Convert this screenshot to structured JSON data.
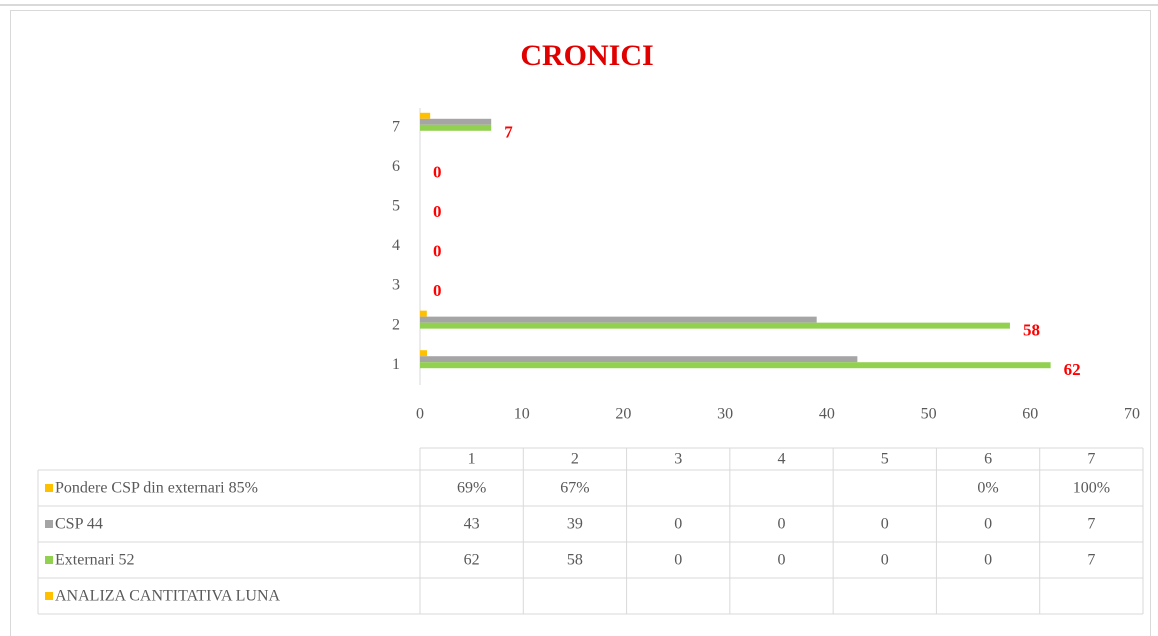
{
  "chart_data": {
    "type": "bar",
    "orientation": "horizontal",
    "title": "CRONICI",
    "categories": [
      "1",
      "2",
      "3",
      "4",
      "5",
      "6",
      "7"
    ],
    "series": [
      {
        "name": "Pondere CSP din externari 85%",
        "color": "#ffc000",
        "values": [
          0.69,
          0.67,
          null,
          null,
          null,
          0,
          1
        ],
        "value_labels": [
          "69%",
          "67%",
          null,
          null,
          null,
          "0%",
          "100%"
        ]
      },
      {
        "name": "CSP 44",
        "color": "#a5a5a5",
        "values": [
          43,
          39,
          0,
          0,
          0,
          0,
          7
        ]
      },
      {
        "name": "Externari 52",
        "color": "#92d050",
        "values": [
          62,
          58,
          0,
          0,
          0,
          0,
          7
        ],
        "data_labels": true,
        "label_color": "#ff0000"
      },
      {
        "name": "ANALIZA CANTITATIVA LUNA",
        "color": "#ffc000",
        "values": [
          null,
          null,
          null,
          null,
          null,
          null,
          null
        ]
      }
    ],
    "xlim": [
      0,
      70
    ],
    "xticks": [
      0,
      10,
      20,
      30,
      40,
      50,
      60,
      70
    ],
    "grid": false,
    "data_table": true
  }
}
